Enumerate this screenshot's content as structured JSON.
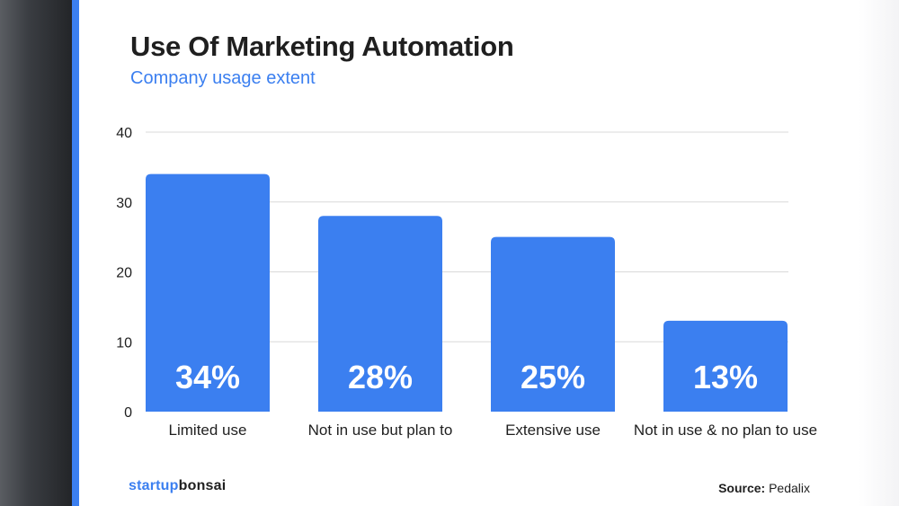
{
  "title": "Use Of Marketing Automation",
  "subtitle": "Company usage extent",
  "brand": {
    "part1": "startup",
    "part2": "bonsai"
  },
  "source": {
    "label": "Source:",
    "value": "Pedalix"
  },
  "colors": {
    "bar": "#3b7ff0",
    "accent": "#3b7ff0",
    "grid": "#d9d9d9",
    "text": "#1f1f1f"
  },
  "chart_data": {
    "type": "bar",
    "categories": [
      "Limited use",
      "Not in use but plan to",
      "Extensive use",
      "Not in use & no plan to use"
    ],
    "values": [
      34,
      28,
      25,
      13
    ],
    "value_labels": [
      "34%",
      "28%",
      "25%",
      "13%"
    ],
    "ylim": [
      0,
      40
    ],
    "yticks": [
      0,
      10,
      20,
      30,
      40
    ],
    "grid": true,
    "legend": "none"
  }
}
